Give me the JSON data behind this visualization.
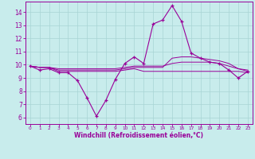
{
  "xlabel": "Windchill (Refroidissement éolien,°C)",
  "background_color": "#c8ecec",
  "grid_color": "#a8d4d4",
  "line_color": "#990099",
  "x": [
    0,
    1,
    2,
    3,
    4,
    5,
    6,
    7,
    8,
    9,
    10,
    11,
    12,
    13,
    14,
    15,
    16,
    17,
    18,
    19,
    20,
    21,
    22,
    23
  ],
  "line1": [
    9.9,
    9.6,
    9.7,
    9.4,
    9.4,
    8.8,
    7.5,
    6.1,
    7.3,
    8.9,
    10.1,
    10.6,
    10.1,
    13.1,
    13.4,
    14.5,
    13.3,
    10.9,
    10.5,
    10.2,
    10.1,
    9.6,
    9.0,
    9.5
  ],
  "line2": [
    9.9,
    9.8,
    9.8,
    9.7,
    9.7,
    9.7,
    9.7,
    9.7,
    9.7,
    9.7,
    9.8,
    9.9,
    9.9,
    9.9,
    9.9,
    10.1,
    10.2,
    10.2,
    10.2,
    10.2,
    10.1,
    9.9,
    9.7,
    9.6
  ],
  "line3": [
    9.9,
    9.8,
    9.8,
    9.6,
    9.6,
    9.6,
    9.6,
    9.6,
    9.6,
    9.6,
    9.7,
    9.8,
    9.8,
    9.8,
    9.8,
    10.5,
    10.6,
    10.6,
    10.5,
    10.4,
    10.3,
    10.1,
    9.7,
    9.5
  ],
  "line4": [
    9.9,
    9.8,
    9.8,
    9.5,
    9.5,
    9.5,
    9.5,
    9.5,
    9.5,
    9.5,
    9.6,
    9.7,
    9.5,
    9.5,
    9.5,
    9.5,
    9.5,
    9.5,
    9.5,
    9.5,
    9.5,
    9.5,
    9.5,
    9.4
  ],
  "ylim": [
    5.5,
    14.8
  ],
  "xlim": [
    -0.5,
    23.5
  ],
  "yticks": [
    6,
    7,
    8,
    9,
    10,
    11,
    12,
    13,
    14
  ],
  "xticks": [
    0,
    1,
    2,
    3,
    4,
    5,
    6,
    7,
    8,
    9,
    10,
    11,
    12,
    13,
    14,
    15,
    16,
    17,
    18,
    19,
    20,
    21,
    22,
    23
  ]
}
